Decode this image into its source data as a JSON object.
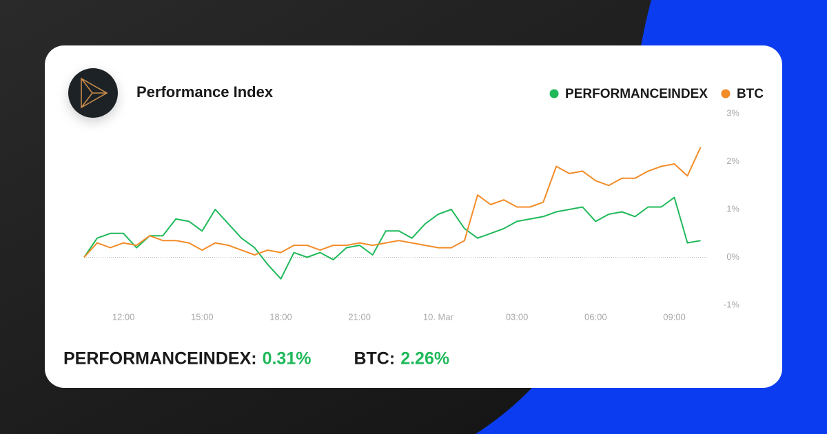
{
  "chart_data": {
    "type": "line",
    "title": "Performance Index",
    "x": [
      10.5,
      11,
      11.5,
      12,
      12.5,
      13,
      13.5,
      14,
      14.5,
      15,
      15.5,
      16,
      16.5,
      17,
      17.5,
      18,
      18.5,
      19,
      19.5,
      20,
      20.5,
      21,
      21.5,
      22,
      22.5,
      23,
      23.5,
      24,
      24.5,
      25,
      25.5,
      26,
      26.5,
      27,
      27.5,
      28,
      28.5,
      29,
      29.5,
      30,
      30.5,
      31,
      31.5,
      32,
      32.5,
      33,
      33.5,
      34
    ],
    "series": [
      {
        "name": "PERFORMANCEINDEX",
        "color": "#1fb95a",
        "values": [
          0.0,
          0.4,
          0.5,
          0.5,
          0.2,
          0.45,
          0.45,
          0.8,
          0.75,
          0.55,
          1.0,
          0.7,
          0.4,
          0.2,
          -0.15,
          -0.45,
          0.1,
          0.0,
          0.1,
          -0.05,
          0.2,
          0.25,
          0.05,
          0.55,
          0.55,
          0.4,
          0.7,
          0.9,
          1.0,
          0.6,
          0.4,
          0.5,
          0.6,
          0.75,
          0.8,
          0.85,
          0.95,
          1.0,
          1.05,
          0.75,
          0.9,
          0.95,
          0.85,
          1.05,
          1.05,
          1.25,
          0.3,
          0.35
        ]
      },
      {
        "name": "BTC",
        "color": "#f28c28",
        "values": [
          0.0,
          0.3,
          0.2,
          0.3,
          0.25,
          0.45,
          0.35,
          0.35,
          0.3,
          0.15,
          0.3,
          0.25,
          0.15,
          0.05,
          0.15,
          0.1,
          0.25,
          0.25,
          0.15,
          0.25,
          0.25,
          0.3,
          0.25,
          0.3,
          0.35,
          0.3,
          0.25,
          0.2,
          0.2,
          0.35,
          1.3,
          1.1,
          1.2,
          1.05,
          1.05,
          1.15,
          1.9,
          1.75,
          1.8,
          1.6,
          1.5,
          1.65,
          1.65,
          1.8,
          1.9,
          1.95,
          1.7,
          2.3
        ]
      }
    ],
    "xlim": [
      10.5,
      34.3
    ],
    "xticks": [
      {
        "value": 12,
        "label": "12:00"
      },
      {
        "value": 15,
        "label": "15:00"
      },
      {
        "value": 18,
        "label": "18:00"
      },
      {
        "value": 21,
        "label": "21:00"
      },
      {
        "value": 24,
        "label": "10. Mar"
      },
      {
        "value": 27,
        "label": "03:00"
      },
      {
        "value": 30,
        "label": "06:00"
      },
      {
        "value": 33,
        "label": "09:00"
      }
    ],
    "ylim": [
      -1,
      3
    ],
    "yticks": [
      {
        "value": -1,
        "label": "-1%"
      },
      {
        "value": 0,
        "label": "0%"
      },
      {
        "value": 1,
        "label": "1%"
      },
      {
        "value": 2,
        "label": "2%"
      },
      {
        "value": 3,
        "label": "3%"
      }
    ],
    "legend": "top-right",
    "summary": [
      {
        "label": "PERFORMANCEINDEX:",
        "value": "0.31%"
      },
      {
        "label": "BTC:",
        "value": "2.26%"
      }
    ]
  }
}
